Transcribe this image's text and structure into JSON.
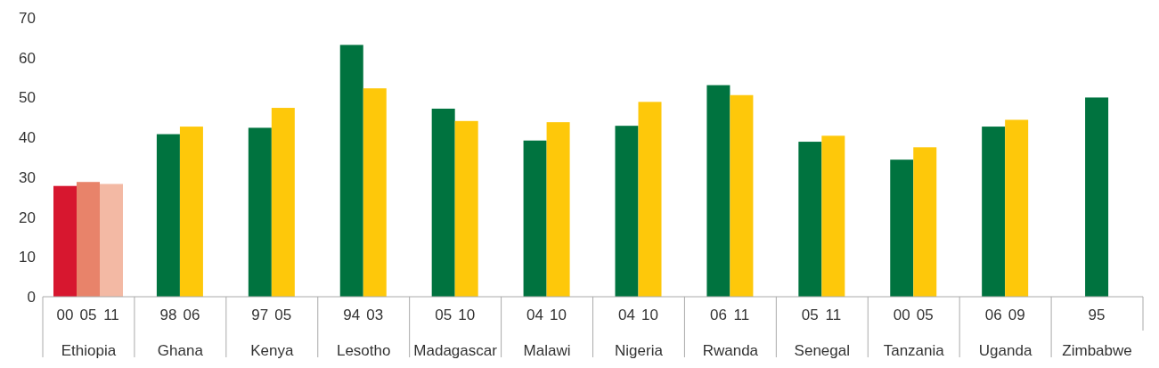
{
  "chart_data": {
    "type": "bar",
    "categories": [
      "Ethiopia",
      "Ghana",
      "Kenya",
      "Lesotho",
      "Madagascar",
      "Malawi",
      "Nigeria",
      "Rwanda",
      "Senegal",
      "Tanzania",
      "Uganda",
      "Zimbabwe"
    ],
    "ylim": [
      0,
      70
    ],
    "yticks": [
      0,
      10,
      20,
      30,
      40,
      50,
      60,
      70
    ],
    "series": [
      {
        "colors": [
          "#d7172f",
          "#00733f",
          "#00733f",
          "#00733f",
          "#00733f",
          "#00733f",
          "#00733f",
          "#00733f",
          "#00733f",
          "#00733f",
          "#00733f",
          "#00733f"
        ],
        "values": [
          27.8,
          40.8,
          42.4,
          63.2,
          47.2,
          39.2,
          42.9,
          53.1,
          38.9,
          34.4,
          42.7,
          50.0
        ]
      },
      {
        "colors": [
          "#e8836a",
          "#fec80a",
          "#fec80a",
          "#fec80a",
          "#fec80a",
          "#fec80a",
          "#fec80a",
          "#fec80a",
          "#fec80a",
          "#fec80a",
          "#fec80a",
          null
        ],
        "values": [
          28.8,
          42.7,
          47.4,
          52.3,
          44.1,
          43.8,
          48.9,
          50.6,
          40.4,
          37.5,
          44.4,
          null
        ]
      },
      {
        "colors": [
          "#f3b9a4",
          null,
          null,
          null,
          null,
          null,
          null,
          null,
          null,
          null,
          null,
          null
        ],
        "values": [
          28.3,
          null,
          null,
          null,
          null,
          null,
          null,
          null,
          null,
          null,
          null,
          null
        ]
      }
    ],
    "annotations": [
      "00",
      "05",
      "11",
      "98",
      "06",
      "97",
      "05",
      "94",
      "03",
      "05",
      "10",
      "04",
      "10",
      "04",
      "10",
      "06",
      "11",
      "05",
      "11",
      "00",
      "05",
      "06",
      "09",
      "95"
    ]
  }
}
